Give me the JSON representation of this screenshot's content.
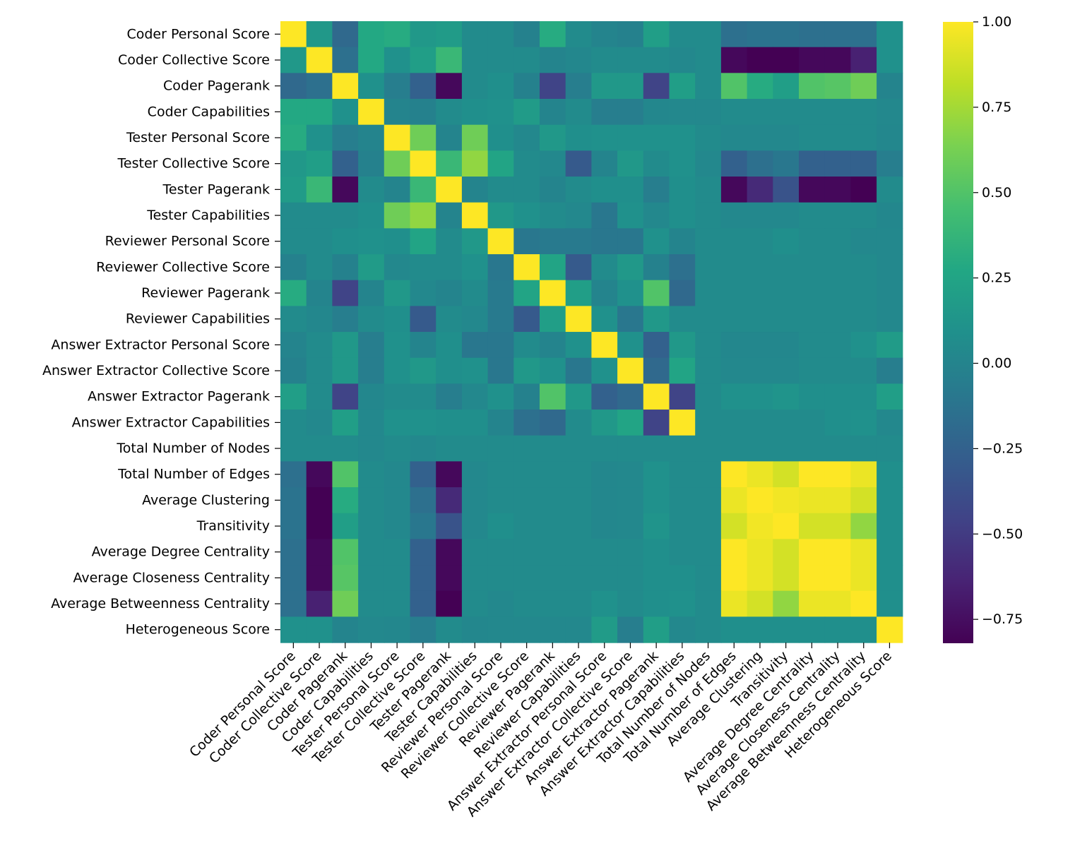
{
  "chart_data": {
    "type": "heatmap",
    "title": "",
    "xlabel": "",
    "ylabel": "",
    "labels": [
      "Coder Personal Score",
      "Coder Collective Score",
      "Coder Pagerank",
      "Coder Capabilities",
      "Tester Personal Score",
      "Tester Collective Score",
      "Tester Pagerank",
      "Tester Capabilities",
      "Reviewer Personal Score",
      "Reviewer Collective Score",
      "Reviewer Pagerank",
      "Reviewer Capabilities",
      "Answer Extractor Personal Score",
      "Answer Extractor Collective Score",
      "Answer Extractor Pagerank",
      "Answer Extractor Capabilities",
      "Total Number of Nodes",
      "Total Number of Edges",
      "Average Clustering",
      "Transitivity",
      "Average Degree Centrality",
      "Average Closeness Centrality",
      "Average Betweenness Centrality",
      "Heterogeneous Score"
    ],
    "matrix": [
      [
        1.0,
        0.15,
        -0.2,
        0.28,
        0.3,
        0.15,
        0.18,
        0.05,
        0.05,
        -0.02,
        0.3,
        0.05,
        0.0,
        -0.02,
        0.2,
        0.05,
        0.05,
        -0.15,
        -0.13,
        -0.13,
        -0.15,
        -0.15,
        -0.15,
        0.1
      ],
      [
        0.15,
        1.0,
        -0.15,
        0.28,
        0.1,
        0.2,
        0.4,
        0.05,
        0.05,
        0.05,
        0.0,
        0.02,
        0.05,
        0.05,
        0.05,
        0.03,
        0.05,
        -0.78,
        -0.82,
        -0.82,
        -0.78,
        -0.78,
        -0.65,
        0.1
      ],
      [
        -0.2,
        -0.15,
        1.0,
        0.1,
        -0.05,
        -0.25,
        -0.78,
        0.05,
        0.08,
        -0.02,
        -0.45,
        -0.05,
        0.15,
        0.15,
        -0.45,
        0.2,
        0.05,
        0.5,
        0.3,
        0.2,
        0.5,
        0.52,
        0.6,
        0.0
      ],
      [
        0.28,
        0.28,
        0.1,
        1.0,
        0.0,
        -0.02,
        0.05,
        0.08,
        0.1,
        0.18,
        0.0,
        0.05,
        -0.05,
        -0.05,
        0.02,
        0.03,
        0.03,
        0.05,
        0.05,
        0.05,
        0.05,
        0.05,
        0.05,
        0.03
      ],
      [
        0.3,
        0.1,
        -0.05,
        0.0,
        1.0,
        0.6,
        0.0,
        0.6,
        0.08,
        0.03,
        0.15,
        0.08,
        0.1,
        0.1,
        0.1,
        0.1,
        0.05,
        0.03,
        0.03,
        0.03,
        0.05,
        0.05,
        0.05,
        0.02
      ],
      [
        0.15,
        0.2,
        -0.25,
        -0.02,
        0.6,
        1.0,
        0.4,
        0.7,
        0.25,
        0.05,
        0.03,
        -0.3,
        0.0,
        0.15,
        0.05,
        0.1,
        0.03,
        -0.25,
        -0.15,
        -0.1,
        -0.25,
        -0.25,
        -0.25,
        -0.05
      ],
      [
        0.18,
        0.4,
        -0.78,
        0.05,
        0.0,
        0.4,
        1.0,
        0.0,
        0.05,
        0.05,
        0.0,
        0.05,
        0.08,
        0.08,
        -0.05,
        0.08,
        0.05,
        -0.78,
        -0.6,
        -0.35,
        -0.78,
        -0.78,
        -0.82,
        0.05
      ],
      [
        0.05,
        0.05,
        0.05,
        0.08,
        0.6,
        0.7,
        0.0,
        1.0,
        0.15,
        0.1,
        0.05,
        0.03,
        -0.1,
        0.1,
        0.03,
        0.08,
        0.05,
        0.03,
        0.03,
        0.03,
        0.05,
        0.05,
        0.05,
        0.02
      ],
      [
        0.05,
        0.05,
        0.08,
        0.1,
        0.08,
        0.25,
        0.05,
        0.15,
        1.0,
        -0.1,
        -0.08,
        -0.08,
        -0.1,
        -0.1,
        0.1,
        0.0,
        0.05,
        0.05,
        0.05,
        0.08,
        0.05,
        0.05,
        0.03,
        0.03
      ],
      [
        -0.02,
        0.05,
        -0.02,
        0.18,
        0.03,
        0.05,
        0.05,
        0.1,
        -0.1,
        1.0,
        0.25,
        -0.3,
        0.05,
        0.15,
        -0.02,
        -0.15,
        0.05,
        0.05,
        0.05,
        0.05,
        0.05,
        0.05,
        0.05,
        0.03
      ],
      [
        0.3,
        0.0,
        -0.45,
        0.0,
        0.15,
        0.03,
        0.0,
        0.05,
        -0.08,
        0.25,
        1.0,
        0.2,
        0.0,
        0.1,
        0.5,
        -0.2,
        0.05,
        0.05,
        0.05,
        0.05,
        0.05,
        0.05,
        0.05,
        0.03
      ],
      [
        0.05,
        0.02,
        -0.05,
        0.05,
        0.08,
        -0.3,
        0.05,
        0.03,
        -0.08,
        -0.3,
        0.2,
        1.0,
        0.1,
        -0.1,
        0.15,
        0.05,
        0.05,
        0.05,
        0.05,
        0.05,
        0.05,
        0.05,
        0.05,
        0.03
      ],
      [
        0.0,
        0.05,
        0.15,
        -0.05,
        0.1,
        0.0,
        0.08,
        -0.1,
        -0.1,
        0.05,
        0.0,
        0.1,
        1.0,
        0.1,
        -0.25,
        0.15,
        0.05,
        0.02,
        0.02,
        0.02,
        0.05,
        0.05,
        0.1,
        0.18
      ],
      [
        -0.02,
        0.05,
        0.15,
        -0.05,
        0.1,
        0.15,
        0.08,
        0.1,
        -0.1,
        0.15,
        0.1,
        -0.1,
        0.1,
        1.0,
        -0.2,
        0.25,
        0.05,
        0.03,
        0.03,
        0.03,
        0.05,
        0.05,
        0.05,
        -0.05
      ],
      [
        0.2,
        0.05,
        -0.45,
        0.02,
        0.05,
        0.05,
        -0.05,
        0.03,
        0.1,
        -0.02,
        0.5,
        0.15,
        -0.25,
        -0.2,
        1.0,
        -0.45,
        0.05,
        0.1,
        0.1,
        0.12,
        0.08,
        0.08,
        0.08,
        0.2
      ],
      [
        0.05,
        0.03,
        0.2,
        0.03,
        0.1,
        0.1,
        0.08,
        0.08,
        0.0,
        -0.15,
        -0.2,
        0.05,
        0.15,
        0.25,
        -0.45,
        1.0,
        0.05,
        0.05,
        0.05,
        0.05,
        0.05,
        0.08,
        0.1,
        0.03
      ],
      [
        0.05,
        0.05,
        0.05,
        0.03,
        0.05,
        0.03,
        0.05,
        0.05,
        0.05,
        0.05,
        0.05,
        0.05,
        0.05,
        0.05,
        0.05,
        0.05,
        0.05,
        0.05,
        0.05,
        0.05,
        0.05,
        0.05,
        0.05,
        0.05
      ],
      [
        -0.15,
        -0.78,
        0.5,
        0.05,
        0.03,
        -0.25,
        -0.78,
        0.03,
        0.05,
        0.05,
        0.05,
        0.05,
        0.02,
        0.03,
        0.1,
        0.05,
        0.05,
        1.0,
        0.95,
        0.88,
        1.0,
        1.0,
        0.95,
        0.08
      ],
      [
        -0.13,
        -0.82,
        0.3,
        0.05,
        0.03,
        -0.15,
        -0.6,
        0.03,
        0.05,
        0.05,
        0.05,
        0.05,
        0.02,
        0.03,
        0.1,
        0.05,
        0.05,
        0.95,
        1.0,
        0.97,
        0.95,
        0.95,
        0.88,
        0.08
      ],
      [
        -0.13,
        -0.82,
        0.2,
        0.05,
        0.03,
        -0.1,
        -0.35,
        0.03,
        0.08,
        0.05,
        0.05,
        0.05,
        0.02,
        0.03,
        0.12,
        0.05,
        0.05,
        0.88,
        0.97,
        1.0,
        0.88,
        0.88,
        0.7,
        0.08
      ],
      [
        -0.15,
        -0.78,
        0.5,
        0.05,
        0.05,
        -0.25,
        -0.78,
        0.05,
        0.05,
        0.05,
        0.05,
        0.05,
        0.05,
        0.05,
        0.08,
        0.05,
        0.05,
        1.0,
        0.95,
        0.88,
        1.0,
        1.0,
        0.95,
        0.08
      ],
      [
        -0.15,
        -0.78,
        0.52,
        0.05,
        0.05,
        -0.25,
        -0.78,
        0.05,
        0.05,
        0.05,
        0.05,
        0.05,
        0.05,
        0.05,
        0.08,
        0.08,
        0.05,
        1.0,
        0.95,
        0.88,
        1.0,
        1.0,
        0.95,
        0.08
      ],
      [
        -0.15,
        -0.65,
        0.6,
        0.05,
        0.05,
        -0.25,
        -0.82,
        0.05,
        0.03,
        0.05,
        0.05,
        0.05,
        0.1,
        0.05,
        0.08,
        0.1,
        0.05,
        0.95,
        0.88,
        0.7,
        0.95,
        0.95,
        1.0,
        0.08
      ],
      [
        0.1,
        0.1,
        0.0,
        0.03,
        0.02,
        -0.05,
        0.05,
        0.02,
        0.03,
        0.03,
        0.03,
        0.03,
        0.18,
        -0.05,
        0.2,
        0.03,
        0.05,
        0.08,
        0.08,
        0.08,
        0.08,
        0.08,
        0.08,
        1.0
      ]
    ],
    "vmin": -0.82,
    "vmax": 1.0,
    "colormap": "viridis",
    "colorbar": {
      "ticks": [
        1.0,
        0.75,
        0.5,
        0.25,
        0.0,
        -0.25,
        -0.5,
        -0.75
      ],
      "tick_labels": [
        "1.00",
        "0.75",
        "0.50",
        "0.25",
        "0.00",
        "−0.25",
        "−0.50",
        "−0.75"
      ]
    },
    "grid": false,
    "legend": "colorbar-right"
  }
}
